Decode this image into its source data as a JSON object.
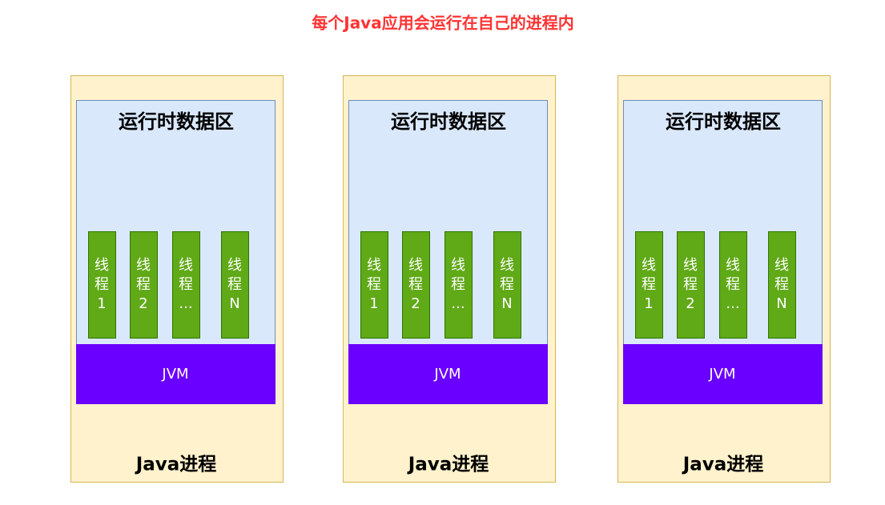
{
  "title": "每个Java应用会运行在自己的进程内",
  "processes": [
    {
      "runtime_label": "运行时数据区",
      "threads": [
        {
          "lines": [
            "线",
            "程",
            "1"
          ]
        },
        {
          "lines": [
            "线",
            "程",
            "2"
          ]
        },
        {
          "lines": [
            "线",
            "程",
            "..."
          ]
        },
        {
          "lines": [
            "线",
            "程",
            "N"
          ]
        }
      ],
      "jvm_label": "JVM",
      "label": "Java进程"
    },
    {
      "runtime_label": "运行时数据区",
      "threads": [
        {
          "lines": [
            "线",
            "程",
            "1"
          ]
        },
        {
          "lines": [
            "线",
            "程",
            "2"
          ]
        },
        {
          "lines": [
            "线",
            "程",
            "..."
          ]
        },
        {
          "lines": [
            "线",
            "程",
            "N"
          ]
        }
      ],
      "jvm_label": "JVM",
      "label": "Java进程"
    },
    {
      "runtime_label": "运行时数据区",
      "threads": [
        {
          "lines": [
            "线",
            "程",
            "1"
          ]
        },
        {
          "lines": [
            "线",
            "程",
            "2"
          ]
        },
        {
          "lines": [
            "线",
            "程",
            "..."
          ]
        },
        {
          "lines": [
            "线",
            "程",
            "N"
          ]
        }
      ],
      "jvm_label": "JVM",
      "label": "Java进程"
    }
  ]
}
